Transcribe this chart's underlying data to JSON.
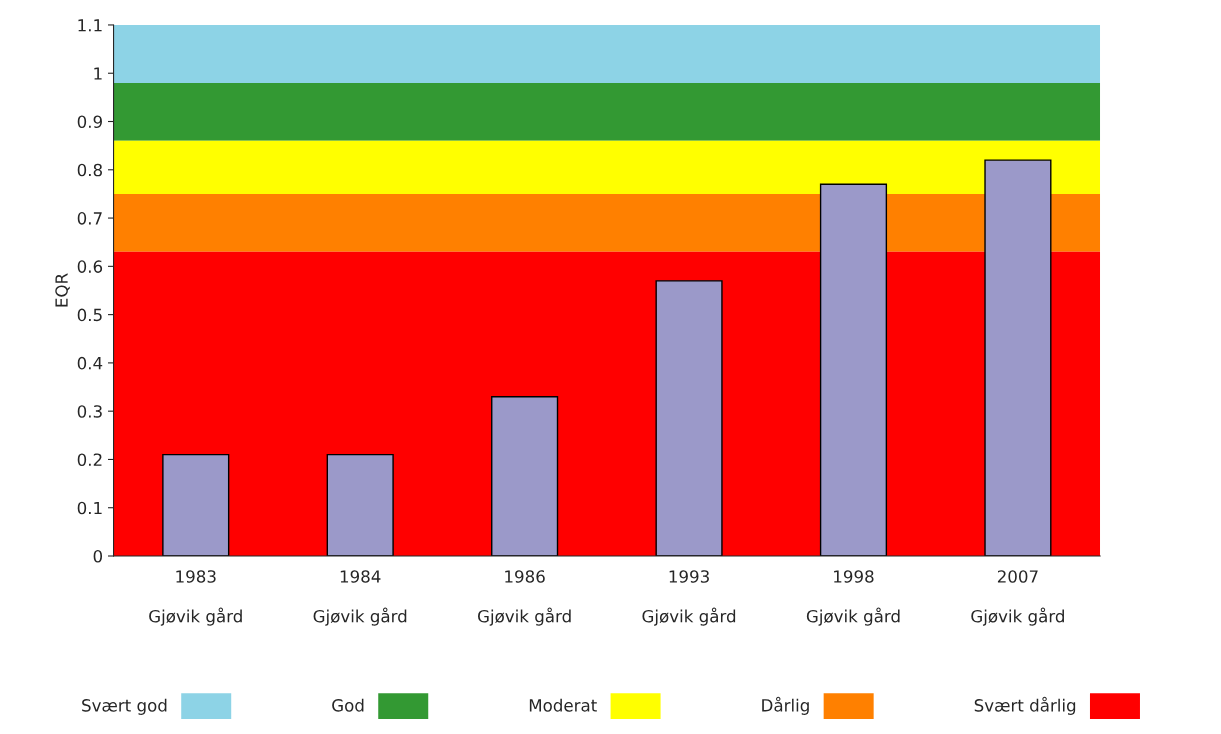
{
  "chart_data": {
    "type": "bar",
    "ylabel": "EQR",
    "categories": [
      "1983\n\nGjøvik gård",
      "1984\n\nGjøvik gård",
      "1986\n\nGjøvik gård",
      "1993\n\nGjøvik gård",
      "1998\n\nGjøvik gård",
      "2007\n\nGjøvik gård"
    ],
    "values": [
      0.21,
      0.21,
      0.33,
      0.57,
      0.77,
      0.82
    ],
    "color": "#9b99c9",
    "ylim": [
      0,
      1.1
    ],
    "yticks": [
      0,
      0.1,
      0.2,
      0.3,
      0.4,
      0.5,
      0.6,
      0.7,
      0.8,
      0.9,
      1,
      1.1
    ],
    "bands": [
      {
        "axis": "y",
        "from": 0.98,
        "to": 1.1,
        "label": "Svært god",
        "color": "#8dd3e6"
      },
      {
        "axis": "y",
        "from": 0.86,
        "to": 0.98,
        "label": "God",
        "color": "#339933"
      },
      {
        "axis": "y",
        "from": 0.75,
        "to": 0.86,
        "label": "Moderat",
        "color": "#ffff00"
      },
      {
        "axis": "y",
        "from": 0.63,
        "to": 0.75,
        "label": "Dårlig",
        "color": "#ff8000"
      },
      {
        "axis": "y",
        "from": 0,
        "to": 0.63,
        "label": "Svært dårlig",
        "color": "#ff0000"
      }
    ],
    "legend": "bottom",
    "grid": false
  }
}
